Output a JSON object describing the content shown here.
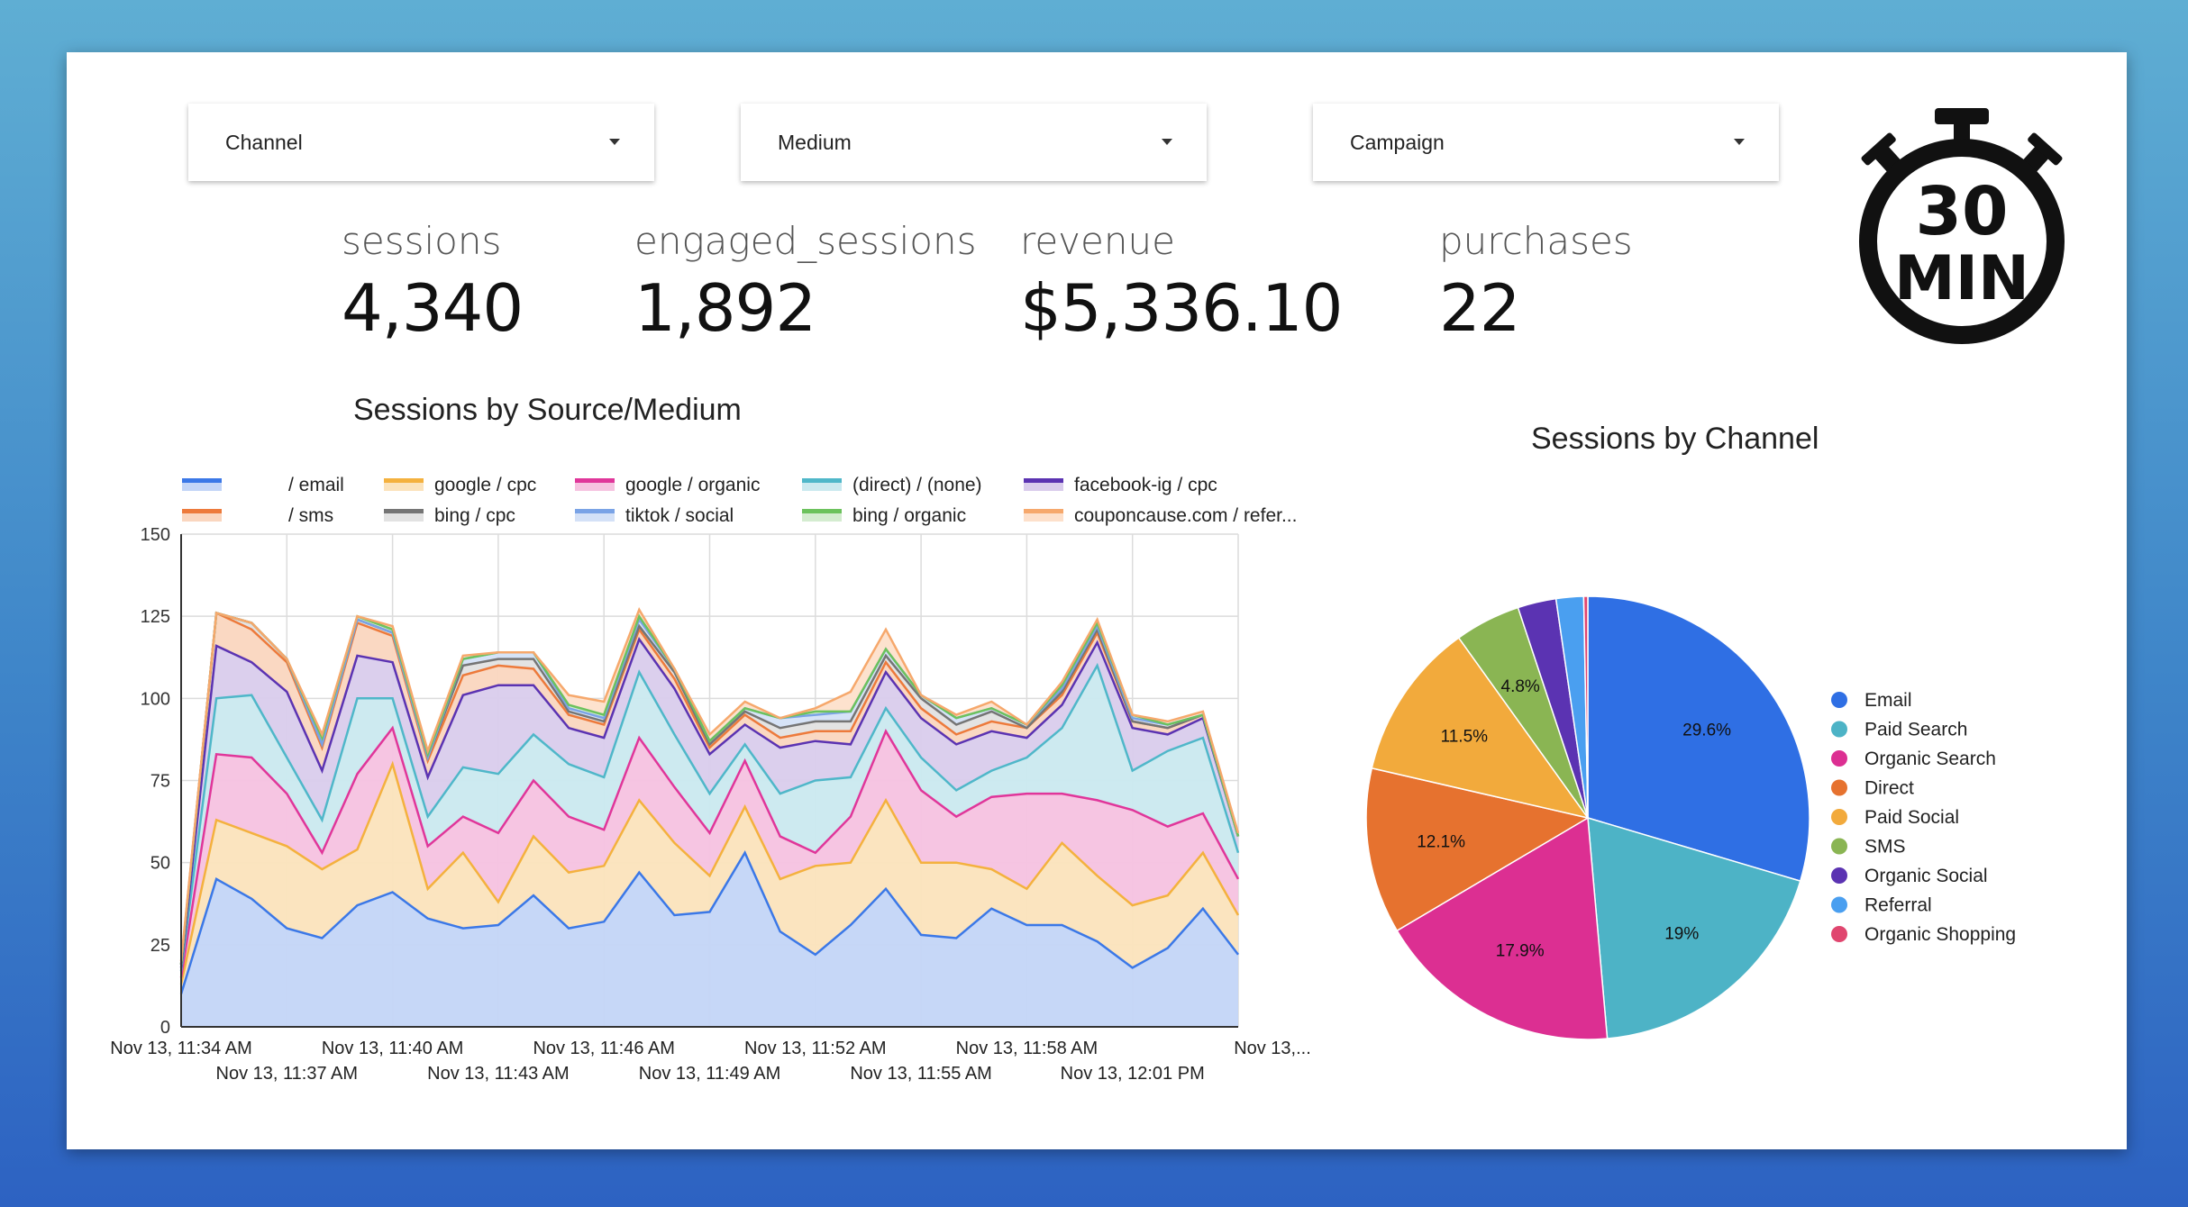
{
  "filters": [
    {
      "label": "Channel"
    },
    {
      "label": "Medium"
    },
    {
      "label": "Campaign"
    }
  ],
  "timer_badge": {
    "number": "30",
    "unit": "MIN"
  },
  "kpis": [
    {
      "label": "sessions",
      "value": "4,340"
    },
    {
      "label": "engaged_sessions",
      "value": "1,892"
    },
    {
      "label": "revenue",
      "value": "$5,336.10"
    },
    {
      "label": "purchases",
      "value": "22"
    }
  ],
  "chart_data": [
    {
      "type": "area",
      "stacked": true,
      "title": "Sessions by Source/Medium",
      "ylim": [
        0,
        150
      ],
      "y_ticks": [
        "0",
        "25",
        "50",
        "75",
        "100",
        "125",
        "150"
      ],
      "x_tick_labels_top": [
        "Nov 13, 11:34 AM",
        "Nov 13, 11:40 AM",
        "Nov 13, 11:46 AM",
        "Nov 13, 11:52 AM",
        "Nov 13, 11:58 AM",
        "Nov 13,..."
      ],
      "x_tick_labels_bottom": [
        "Nov 13, 11:37 AM",
        "Nov 13, 11:43 AM",
        "Nov 13, 11:49 AM",
        "Nov 13, 11:55 AM",
        "Nov 13, 12:01 PM"
      ],
      "grid": true,
      "legend_position": "top",
      "series": [
        {
          "name": "/ email",
          "color": "#3b78e7",
          "fill": "#c3d5f7",
          "values": [
            10,
            45,
            39,
            30,
            27,
            37,
            41,
            33,
            30,
            31,
            40,
            30,
            32,
            47,
            34,
            35,
            53,
            29,
            22,
            31,
            42,
            28,
            27,
            36,
            31,
            31,
            26,
            18,
            24,
            36,
            22
          ]
        },
        {
          "name": "google / cpc",
          "color": "#f4b13e",
          "fill": "#fbe3bc",
          "values": [
            3,
            18,
            20,
            25,
            21,
            17,
            39,
            9,
            23,
            7,
            18,
            17,
            17,
            22,
            22,
            11,
            14,
            16,
            27,
            19,
            27,
            22,
            23,
            12,
            11,
            25,
            20,
            19,
            16,
            17,
            12
          ]
        },
        {
          "name": "google / organic",
          "color": "#e0369a",
          "fill": "#f6c2e0",
          "values": [
            2,
            20,
            23,
            16,
            5,
            23,
            11,
            13,
            11,
            21,
            17,
            17,
            11,
            19,
            17,
            13,
            14,
            13,
            4,
            14,
            21,
            22,
            14,
            22,
            29,
            15,
            23,
            29,
            21,
            12,
            11
          ]
        },
        {
          "name": "(direct) / (none)",
          "color": "#4fb7c9",
          "fill": "#cae9ef",
          "values": [
            2,
            17,
            19,
            11,
            10,
            23,
            9,
            9,
            15,
            18,
            14,
            16,
            16,
            20,
            16,
            12,
            5,
            13,
            22,
            12,
            7,
            10,
            8,
            8,
            11,
            20,
            41,
            12,
            23,
            23,
            8
          ]
        },
        {
          "name": "facebook-ig / cpc",
          "color": "#5b33b2",
          "fill": "#d9ccec",
          "values": [
            1,
            16,
            10,
            20,
            15,
            13,
            11,
            12,
            22,
            27,
            15,
            11,
            12,
            10,
            14,
            12,
            6,
            14,
            12,
            10,
            11,
            12,
            14,
            12,
            6,
            7,
            7,
            13,
            5,
            6,
            5
          ]
        },
        {
          "name": "/ sms",
          "color": "#ed7a3b",
          "fill": "#fad6bf",
          "values": [
            1,
            10,
            10,
            9,
            7,
            10,
            8,
            5,
            6,
            6,
            5,
            4,
            4,
            3,
            3,
            2,
            3,
            3,
            3,
            4,
            3,
            3,
            3,
            3,
            3,
            3,
            3,
            2,
            2,
            1,
            0
          ]
        },
        {
          "name": "bing / cpc",
          "color": "#757575",
          "fill": "#e2e2e2",
          "values": [
            0,
            0,
            2,
            1,
            1,
            1,
            1,
            1,
            3,
            2,
            3,
            1,
            1,
            1,
            2,
            1,
            1,
            3,
            3,
            3,
            2,
            3,
            3,
            3,
            0,
            1,
            1,
            0,
            0,
            0,
            0
          ]
        },
        {
          "name": "tiktok / social",
          "color": "#7aa3e6",
          "fill": "#d4e1f7",
          "values": [
            0,
            0,
            0,
            0,
            0,
            0,
            0,
            0,
            2,
            2,
            2,
            1,
            1,
            2,
            1,
            1,
            1,
            3,
            2,
            3,
            2,
            1,
            2,
            1,
            1,
            1,
            1,
            1,
            1,
            0,
            0
          ]
        },
        {
          "name": "bing / organic",
          "color": "#6cc25d",
          "fill": "#d4ecd0",
          "values": [
            0,
            0,
            0,
            0,
            2,
            1,
            1,
            1,
            0,
            0,
            0,
            1,
            1,
            1,
            0,
            0,
            0,
            0,
            1,
            0,
            0,
            0,
            0,
            0,
            0,
            1,
            1,
            1,
            0,
            0,
            0
          ]
        },
        {
          "name": "couponcause.com / refer...",
          "color": "#f6a86c",
          "fill": "#fde0cb",
          "values": [
            1,
            0,
            0,
            0,
            1,
            0,
            1,
            1,
            1,
            0,
            0,
            3,
            4,
            2,
            0,
            2,
            2,
            0,
            1,
            6,
            6,
            0,
            1,
            2,
            0,
            1,
            1,
            0,
            1,
            1,
            1
          ]
        }
      ]
    },
    {
      "type": "pie",
      "title": "Sessions by Channel",
      "legend_position": "right",
      "slices": [
        {
          "label": "Email",
          "value": 29.6,
          "color": "#2f6fe4",
          "display": "29.6%"
        },
        {
          "label": "Paid Search",
          "value": 19.0,
          "color": "#4db3c6",
          "display": "19%"
        },
        {
          "label": "Organic Search",
          "value": 17.9,
          "color": "#dc2f92",
          "display": "17.9%"
        },
        {
          "label": "Direct",
          "value": 12.1,
          "color": "#e6722f",
          "display": "12.1%"
        },
        {
          "label": "Paid Social",
          "value": 11.5,
          "color": "#f2aa3c",
          "display": "11.5%"
        },
        {
          "label": "SMS",
          "value": 4.8,
          "color": "#8ab553",
          "display": "4.8%"
        },
        {
          "label": "Organic Social",
          "value": 2.8,
          "color": "#5b33b2",
          "display": ""
        },
        {
          "label": "Referral",
          "value": 2.0,
          "color": "#4a9ff0",
          "display": ""
        },
        {
          "label": "Organic Shopping",
          "value": 0.3,
          "color": "#e0466f",
          "display": ""
        }
      ]
    }
  ]
}
